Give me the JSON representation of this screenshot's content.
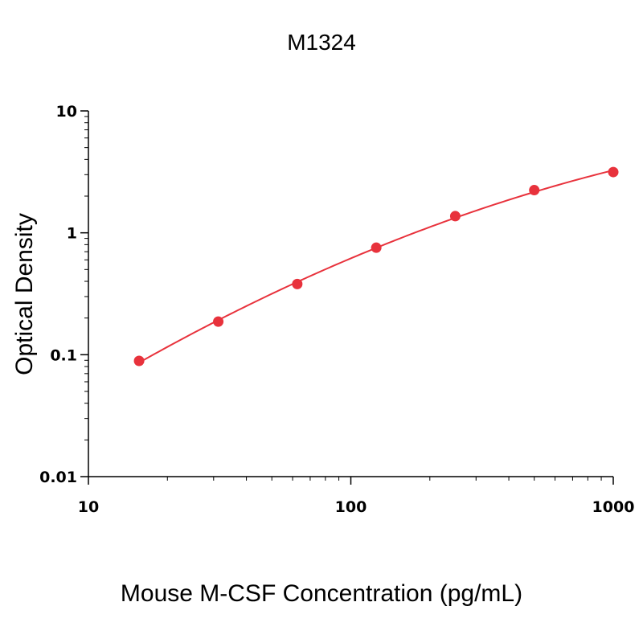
{
  "chart_data": {
    "type": "scatter",
    "title": "M1324",
    "xlabel": "Mouse M-CSF Concentration (pg/mL)",
    "ylabel": "Optical Density",
    "x_scale": "log",
    "y_scale": "log",
    "xlim": [
      10,
      1000
    ],
    "ylim": [
      0.01,
      10
    ],
    "x_ticks": [
      10,
      100,
      1000
    ],
    "x_tick_labels": [
      "10",
      "100",
      "1000"
    ],
    "y_ticks": [
      0.01,
      0.1,
      1,
      10
    ],
    "y_tick_labels": [
      "0.01",
      "0.1",
      "1",
      "10"
    ],
    "grid": false,
    "legend": "none",
    "series": [
      {
        "x": [
          15.6,
          31.25,
          62.5,
          125,
          250,
          500,
          1000
        ],
        "y": [
          0.089,
          0.187,
          0.38,
          0.755,
          1.37,
          2.24,
          3.15
        ],
        "color": "#e8323c",
        "fit_line": true
      }
    ]
  }
}
